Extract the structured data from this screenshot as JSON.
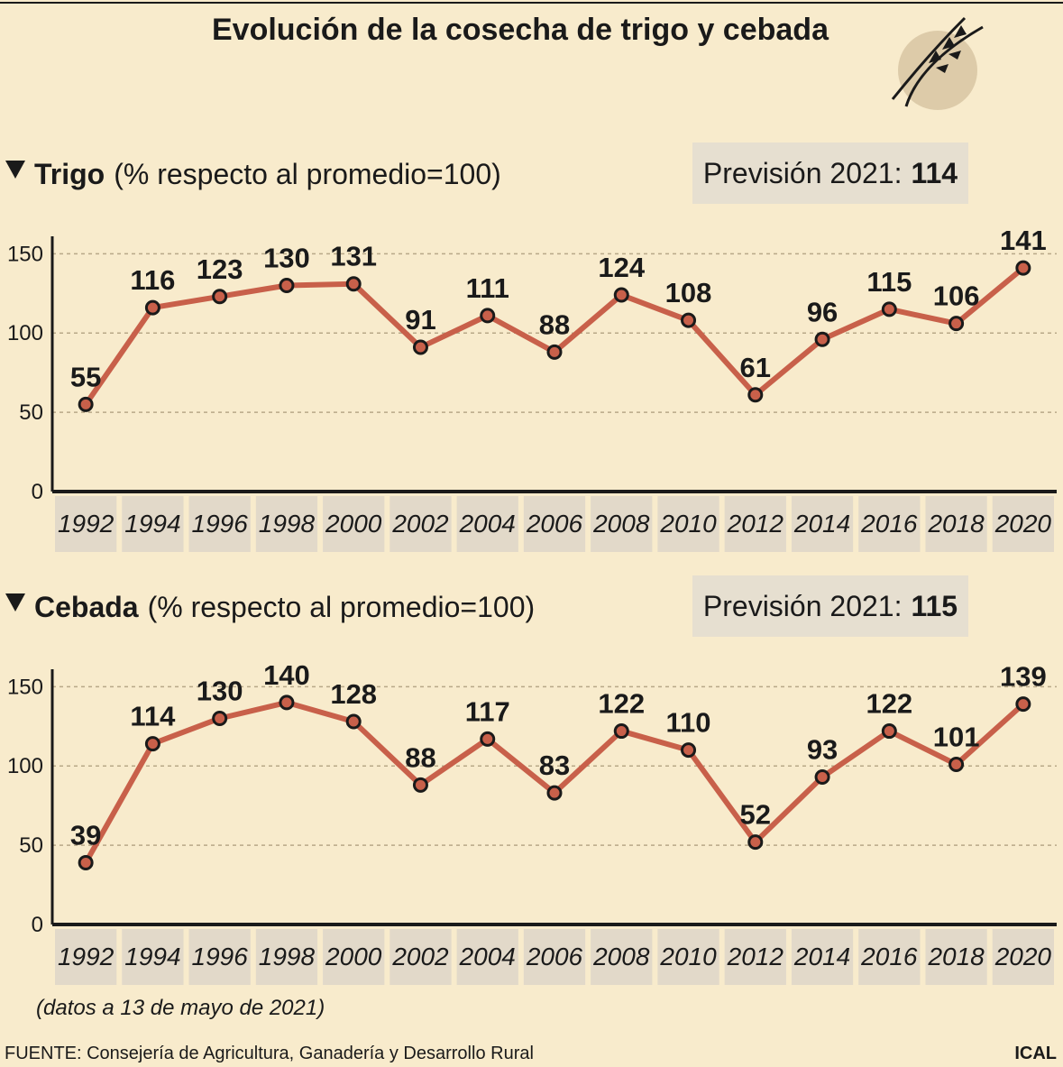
{
  "title": "Evolución de la cosecha de trigo y cebada",
  "note": "(datos a 13 de mayo de 2021)",
  "source": "FUENTE: Consejería de Agricultura, Ganadería y Desarrollo Rural",
  "credit": "ICAL",
  "chart_data": [
    {
      "type": "line",
      "title": "Trigo",
      "subtitle": "(% respecto al promedio=100)",
      "forecast": {
        "label": "Previsión 2021:",
        "value": 114
      },
      "categories": [
        "1992",
        "1994",
        "1996",
        "1998",
        "2000",
        "2002",
        "2004",
        "2006",
        "2008",
        "2010",
        "2012",
        "2014",
        "2016",
        "2018",
        "2020"
      ],
      "values": [
        55,
        116,
        123,
        130,
        131,
        91,
        111,
        88,
        124,
        108,
        61,
        96,
        115,
        106,
        141
      ],
      "color": "#c8604a",
      "ylim": [
        0,
        161
      ],
      "yticks": [
        0,
        50,
        100,
        150
      ],
      "grid": true
    },
    {
      "type": "line",
      "title": "Cebada",
      "subtitle": "(% respecto al promedio=100)",
      "forecast": {
        "label": "Previsión 2021:",
        "value": 115
      },
      "categories": [
        "1992",
        "1994",
        "1996",
        "1998",
        "2000",
        "2002",
        "2004",
        "2006",
        "2008",
        "2010",
        "2012",
        "2014",
        "2016",
        "2018",
        "2020"
      ],
      "values": [
        39,
        114,
        130,
        140,
        128,
        88,
        117,
        83,
        122,
        110,
        52,
        93,
        122,
        101,
        139
      ],
      "color": "#c8604a",
      "ylim": [
        0,
        161
      ],
      "yticks": [
        0,
        50,
        100,
        150
      ],
      "grid": true
    }
  ]
}
